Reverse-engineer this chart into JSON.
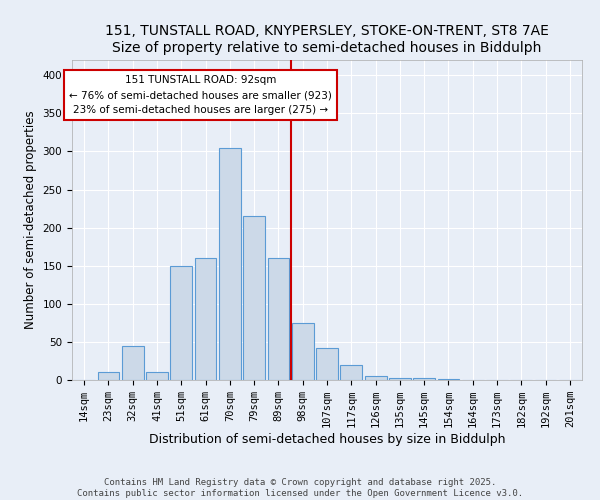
{
  "title": "151, TUNSTALL ROAD, KNYPERSLEY, STOKE-ON-TRENT, ST8 7AE",
  "subtitle": "Size of property relative to semi-detached houses in Biddulph",
  "xlabel": "Distribution of semi-detached houses by size in Biddulph",
  "ylabel": "Number of semi-detached properties",
  "categories": [
    "14sqm",
    "23sqm",
    "32sqm",
    "41sqm",
    "51sqm",
    "61sqm",
    "70sqm",
    "79sqm",
    "89sqm",
    "98sqm",
    "107sqm",
    "117sqm",
    "126sqm",
    "135sqm",
    "145sqm",
    "154sqm",
    "164sqm",
    "173sqm",
    "182sqm",
    "192sqm",
    "201sqm"
  ],
  "values": [
    0,
    10,
    45,
    10,
    150,
    160,
    305,
    215,
    160,
    75,
    42,
    20,
    5,
    2,
    2,
    1,
    0,
    0,
    0,
    0,
    0
  ],
  "bar_color": "#ccd9e8",
  "bar_edge_color": "#5b9bd5",
  "annotation_line1": "151 TUNSTALL ROAD: 92sqm",
  "annotation_line2": "← 76% of semi-detached houses are smaller (923)",
  "annotation_line3": "23% of semi-detached houses are larger (275) →",
  "annotation_box_color": "white",
  "annotation_box_edge_color": "#cc0000",
  "vline_color": "#cc0000",
  "background_color": "#e8eef7",
  "plot_background_color": "#e8eef7",
  "footer_line1": "Contains HM Land Registry data © Crown copyright and database right 2025.",
  "footer_line2": "Contains public sector information licensed under the Open Government Licence v3.0.",
  "ylim": [
    0,
    420
  ],
  "yticks": [
    0,
    50,
    100,
    150,
    200,
    250,
    300,
    350,
    400
  ],
  "title_fontsize": 10,
  "ylabel_fontsize": 8.5,
  "xlabel_fontsize": 9,
  "tick_fontsize": 7.5,
  "annotation_fontsize": 7.5,
  "footer_fontsize": 6.5,
  "vline_x": 8.5
}
